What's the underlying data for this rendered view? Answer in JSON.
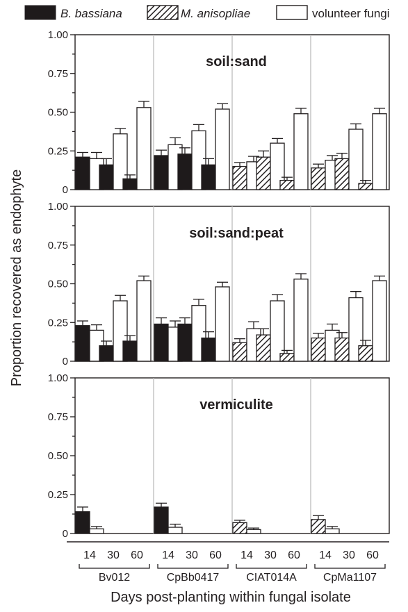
{
  "colors": {
    "bassiana": "#1e1a1b",
    "anisopliae_hatch": "#231f20",
    "volunteer": "#ffffff",
    "axis": "#231f20",
    "divider": "#bdbdbd"
  },
  "chart_data": {
    "type": "bar",
    "legend": [
      {
        "key": "bassiana",
        "label": "B. bassiana",
        "style": "solid-black"
      },
      {
        "key": "anisopliae",
        "label": "M. anisopliae",
        "style": "hatched"
      },
      {
        "key": "volunteer",
        "label": "volunteer fungi",
        "style": "white"
      }
    ],
    "ylabel": "Proportion recovered as endophyte",
    "xlabel": "Days post-planting within fungal isolate",
    "ylim": [
      0,
      1.0
    ],
    "yticks": [
      "0",
      "0.25",
      "0.50",
      "0.75",
      "1.00"
    ],
    "isolates": [
      {
        "name": "Bv012",
        "species": "bassiana"
      },
      {
        "name": "CpBb0417",
        "species": "bassiana"
      },
      {
        "name": "CIAT014A",
        "species": "anisopliae"
      },
      {
        "name": "CpMa1107",
        "species": "anisopliae"
      }
    ],
    "days": [
      "14",
      "30",
      "60"
    ],
    "panels": [
      {
        "title": "soil:sand",
        "data": [
          [
            {
              "fungus": [
                0.21,
                0.03
              ],
              "volunteer": [
                0.2,
                0.04
              ]
            },
            {
              "fungus": [
                0.16,
                0.04
              ],
              "volunteer": [
                0.36,
                0.035
              ]
            },
            {
              "fungus": [
                0.07,
                0.025
              ],
              "volunteer": [
                0.53,
                0.04
              ]
            }
          ],
          [
            {
              "fungus": [
                0.22,
                0.035
              ],
              "volunteer": [
                0.29,
                0.045
              ]
            },
            {
              "fungus": [
                0.23,
                0.04
              ],
              "volunteer": [
                0.38,
                0.04
              ]
            },
            {
              "fungus": [
                0.16,
                0.04
              ],
              "volunteer": [
                0.52,
                0.035
              ]
            }
          ],
          [
            {
              "fungus": [
                0.15,
                0.025
              ],
              "volunteer": [
                0.18,
                0.035
              ]
            },
            {
              "fungus": [
                0.21,
                0.04
              ],
              "volunteer": [
                0.3,
                0.03
              ]
            },
            {
              "fungus": [
                0.06,
                0.02
              ],
              "volunteer": [
                0.49,
                0.035
              ]
            }
          ],
          [
            {
              "fungus": [
                0.14,
                0.025
              ],
              "volunteer": [
                0.19,
                0.03
              ]
            },
            {
              "fungus": [
                0.2,
                0.035
              ],
              "volunteer": [
                0.39,
                0.035
              ]
            },
            {
              "fungus": [
                0.04,
                0.02
              ],
              "volunteer": [
                0.49,
                0.035
              ]
            }
          ]
        ]
      },
      {
        "title": "soil:sand:peat",
        "data": [
          [
            {
              "fungus": [
                0.23,
                0.03
              ],
              "volunteer": [
                0.2,
                0.035
              ]
            },
            {
              "fungus": [
                0.1,
                0.03
              ],
              "volunteer": [
                0.39,
                0.035
              ]
            },
            {
              "fungus": [
                0.13,
                0.035
              ],
              "volunteer": [
                0.52,
                0.03
              ]
            }
          ],
          [
            {
              "fungus": [
                0.24,
                0.04
              ],
              "volunteer": [
                0.22,
                0.04
              ]
            },
            {
              "fungus": [
                0.24,
                0.04
              ],
              "volunteer": [
                0.36,
                0.04
              ]
            },
            {
              "fungus": [
                0.15,
                0.04
              ],
              "volunteer": [
                0.48,
                0.03
              ]
            }
          ],
          [
            {
              "fungus": [
                0.12,
                0.025
              ],
              "volunteer": [
                0.21,
                0.045
              ]
            },
            {
              "fungus": [
                0.17,
                0.04
              ],
              "volunteer": [
                0.39,
                0.04
              ]
            },
            {
              "fungus": [
                0.05,
                0.02
              ],
              "volunteer": [
                0.53,
                0.035
              ]
            }
          ],
          [
            {
              "fungus": [
                0.15,
                0.03
              ],
              "volunteer": [
                0.2,
                0.04
              ]
            },
            {
              "fungus": [
                0.15,
                0.035
              ],
              "volunteer": [
                0.41,
                0.04
              ]
            },
            {
              "fungus": [
                0.1,
                0.035
              ],
              "volunteer": [
                0.52,
                0.03
              ]
            }
          ]
        ]
      },
      {
        "title": "vermiculite",
        "data": [
          [
            {
              "fungus": [
                0.14,
                0.03
              ],
              "volunteer": [
                0.03,
                0.015
              ]
            },
            {
              "fungus": [
                0,
                0
              ],
              "volunteer": [
                0,
                0
              ]
            },
            {
              "fungus": [
                0,
                0
              ],
              "volunteer": [
                0,
                0
              ]
            }
          ],
          [
            {
              "fungus": [
                0.17,
                0.025
              ],
              "volunteer": [
                0.04,
                0.02
              ]
            },
            {
              "fungus": [
                0,
                0
              ],
              "volunteer": [
                0,
                0
              ]
            },
            {
              "fungus": [
                0,
                0
              ],
              "volunteer": [
                0,
                0
              ]
            }
          ],
          [
            {
              "fungus": [
                0.07,
                0.015
              ],
              "volunteer": [
                0.025,
                0.01
              ]
            },
            {
              "fungus": [
                0,
                0
              ],
              "volunteer": [
                0,
                0
              ]
            },
            {
              "fungus": [
                0,
                0
              ],
              "volunteer": [
                0,
                0
              ]
            }
          ],
          [
            {
              "fungus": [
                0.09,
                0.025
              ],
              "volunteer": [
                0.03,
                0.015
              ]
            },
            {
              "fungus": [
                0,
                0
              ],
              "volunteer": [
                0,
                0
              ]
            },
            {
              "fungus": [
                0,
                0
              ],
              "volunteer": [
                0,
                0
              ]
            }
          ]
        ]
      }
    ]
  }
}
